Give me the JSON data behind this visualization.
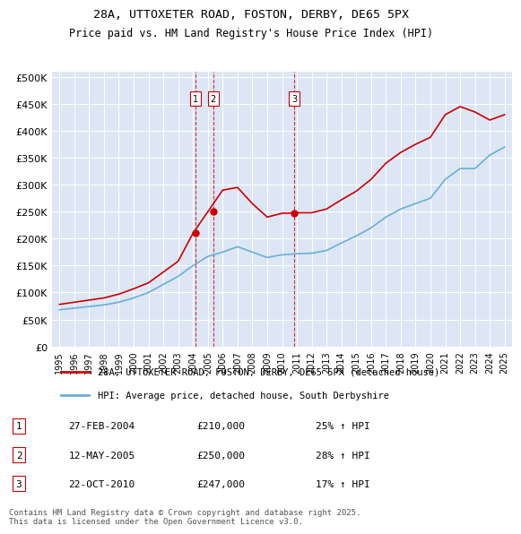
{
  "title1": "28A, UTTOXETER ROAD, FOSTON, DERBY, DE65 5PX",
  "title2": "Price paid vs. HM Land Registry's House Price Index (HPI)",
  "ylabel_ticks": [
    "£0",
    "£50K",
    "£100K",
    "£150K",
    "£200K",
    "£250K",
    "£300K",
    "£350K",
    "£400K",
    "£450K",
    "£500K"
  ],
  "ytick_vals": [
    0,
    50000,
    100000,
    150000,
    200000,
    250000,
    300000,
    350000,
    400000,
    450000,
    500000
  ],
  "ylim": [
    0,
    510000
  ],
  "xlim_start": 1994.5,
  "xlim_end": 2025.5,
  "background_color": "#e8eef7",
  "plot_bg": "#dce6f5",
  "red_color": "#cc0000",
  "blue_color": "#6baed6",
  "transaction_dates": [
    2004.15,
    2005.36,
    2010.81
  ],
  "transaction_prices": [
    210000,
    250000,
    247000
  ],
  "transaction_labels": [
    "1",
    "2",
    "3"
  ],
  "legend_label_red": "28A, UTTOXETER ROAD, FOSTON, DERBY, DE65 5PX (detached house)",
  "legend_label_blue": "HPI: Average price, detached house, South Derbyshire",
  "table_entries": [
    {
      "num": "1",
      "date": "27-FEB-2004",
      "price": "£210,000",
      "hpi": "25% ↑ HPI"
    },
    {
      "num": "2",
      "date": "12-MAY-2005",
      "price": "£250,000",
      "hpi": "28% ↑ HPI"
    },
    {
      "num": "3",
      "date": "22-OCT-2010",
      "price": "£247,000",
      "hpi": "17% ↑ HPI"
    }
  ],
  "footnote": "Contains HM Land Registry data © Crown copyright and database right 2025.\nThis data is licensed under the Open Government Licence v3.0.",
  "hpi_years": [
    1995,
    1996,
    1997,
    1998,
    1999,
    2000,
    2001,
    2002,
    2003,
    2004,
    2005,
    2006,
    2007,
    2008,
    2009,
    2010,
    2011,
    2012,
    2013,
    2014,
    2015,
    2016,
    2017,
    2018,
    2019,
    2020,
    2021,
    2022,
    2023,
    2024,
    2025
  ],
  "hpi_values": [
    68000,
    71000,
    74000,
    77000,
    82000,
    90000,
    100000,
    115000,
    130000,
    150000,
    167000,
    175000,
    185000,
    175000,
    165000,
    170000,
    172000,
    173000,
    178000,
    192000,
    205000,
    220000,
    240000,
    255000,
    265000,
    275000,
    310000,
    330000,
    330000,
    355000,
    370000
  ],
  "red_years": [
    1995,
    1996,
    1997,
    1998,
    1999,
    2000,
    2001,
    2002,
    2003,
    2004,
    2005,
    2006,
    2007,
    2008,
    2009,
    2010,
    2011,
    2012,
    2013,
    2014,
    2015,
    2016,
    2017,
    2018,
    2019,
    2020,
    2021,
    2022,
    2023,
    2024,
    2025
  ],
  "red_values": [
    78000,
    82000,
    86000,
    90000,
    97000,
    107000,
    118000,
    138000,
    158000,
    210000,
    250000,
    290000,
    295000,
    265000,
    240000,
    247000,
    248000,
    248000,
    255000,
    272000,
    288000,
    310000,
    340000,
    360000,
    375000,
    388000,
    430000,
    445000,
    435000,
    420000,
    430000
  ]
}
